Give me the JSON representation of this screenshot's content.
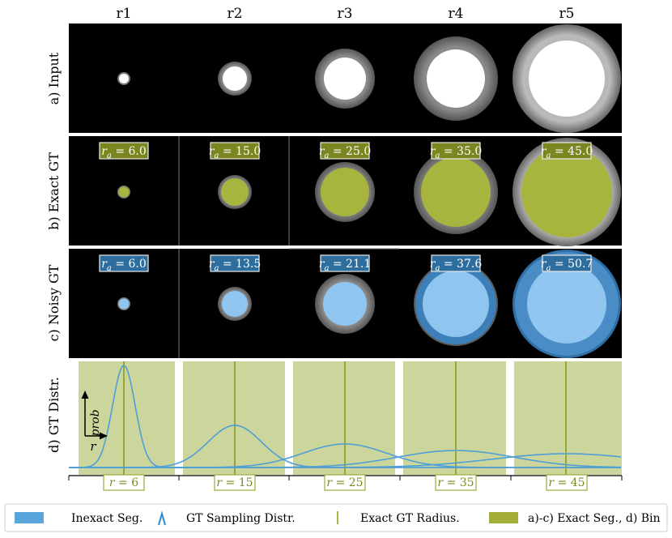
{
  "columns": [
    "r1",
    "r2",
    "r3",
    "r4",
    "r5"
  ],
  "rows": {
    "input": "a) Input",
    "exact": "b) Exact GT",
    "noisy": "c) Noisy GT",
    "distr": "d) GT Distr."
  },
  "exact_badges": [
    "6.0",
    "15.0",
    "25.0",
    "35.0",
    "45.0"
  ],
  "noisy_badges": [
    "6.0",
    "13.5",
    "21.1",
    "37.6",
    "50.7"
  ],
  "badge_prefix": "r",
  "badge_sub": "a",
  "bottom_labels": [
    "6",
    "15",
    "25",
    "35",
    "45"
  ],
  "axis": {
    "prob": "prob",
    "r": "r"
  },
  "legend": [
    {
      "label": "Inexact Seg.",
      "icon": "blue-rectangle"
    },
    {
      "label": "GT Sampling Distr.",
      "icon": "lambda-peak"
    },
    {
      "label": "Exact GT Radius.",
      "icon": "vertical-line"
    },
    {
      "label": "a)-c) Exact Seg., d) Bin",
      "icon": "green-rectangle"
    }
  ],
  "colors": {
    "green": "#9aaa35",
    "green_fill": "#b6c162",
    "green_light": "#cbd59a",
    "blue": "#4f9fd6",
    "blue_fill": "#90c4ea",
    "badge_green": "#7b8621",
    "badge_blue": "#2e6e9e"
  }
}
